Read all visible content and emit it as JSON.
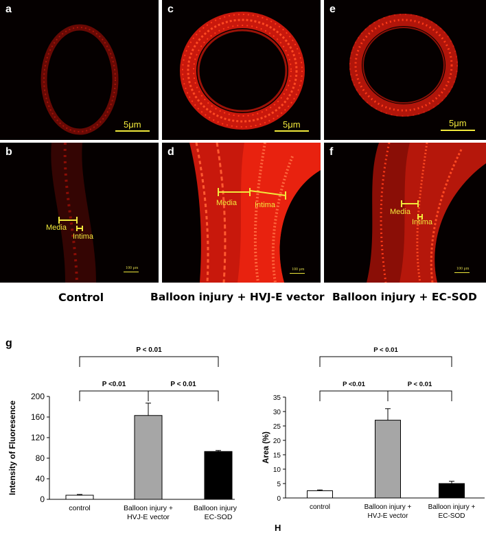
{
  "panels": {
    "a": {
      "label": "a",
      "scale": "5μm"
    },
    "b": {
      "label": "b",
      "scale": "100 μm",
      "media": "Media",
      "intima": "Intima"
    },
    "c": {
      "label": "c",
      "scale": "5μm"
    },
    "d": {
      "label": "d",
      "scale": "100 μm",
      "media": "Media",
      "intima": "Intima"
    },
    "e": {
      "label": "e",
      "scale": "5μm"
    },
    "f": {
      "label": "f",
      "scale": "100 μm",
      "media": "Media",
      "intima": "Intima"
    }
  },
  "captions": {
    "control": "Control",
    "vector": "Balloon injury + HVJ-E vector",
    "ecsod": "Balloon injury + EC-SOD"
  },
  "figure_labels": {
    "g": "g",
    "h": "H"
  },
  "colors": {
    "fluor": "#ff2a10",
    "scale": "#f2ea3c",
    "bar_control": "#ffffff",
    "bar_vector": "#a6a6a6",
    "bar_ecsod": "#000000"
  },
  "chart_data": [
    {
      "type": "bar",
      "categories": [
        "control",
        "Balloon injury + HVJ-E vector",
        "Balloon injury + EC-SOD"
      ],
      "category_lines": [
        [
          "control"
        ],
        [
          "Balloon injury +",
          "HVJ-E vector"
        ],
        [
          "Balloon injury +",
          "EC-SOD"
        ]
      ],
      "values": [
        8,
        163,
        93
      ],
      "errors": [
        1.5,
        24,
        2
      ],
      "ylabel": "Intensity of Fluoresence",
      "ylim": [
        0,
        200
      ],
      "yticks": [
        0,
        40,
        80,
        120,
        160,
        200
      ],
      "significance": [
        {
          "from": 0,
          "to": 1,
          "label": "P <0.01",
          "level": 1
        },
        {
          "from": 1,
          "to": 2,
          "label": "P < 0.01",
          "level": 1
        },
        {
          "from": 0,
          "to": 2,
          "label": "P < 0.01",
          "level": 2
        }
      ]
    },
    {
      "type": "bar",
      "categories": [
        "control",
        "Balloon injury + HVJ-E vector",
        "Balloon injury + EC-SOD"
      ],
      "category_lines": [
        [
          "control"
        ],
        [
          "Balloon injury +",
          "HVJ-E vector"
        ],
        [
          "Balloon injury +",
          "EC-SOD"
        ]
      ],
      "values": [
        2.5,
        27,
        5
      ],
      "errors": [
        0.3,
        4,
        0.8
      ],
      "ylabel": "Area (%)",
      "ylim": [
        0,
        35
      ],
      "yticks": [
        0,
        5,
        10,
        15,
        20,
        25,
        30,
        35
      ],
      "significance": [
        {
          "from": 0,
          "to": 1,
          "label": "P <0.01",
          "level": 1
        },
        {
          "from": 1,
          "to": 2,
          "label": "P < 0.01",
          "level": 1
        },
        {
          "from": 0,
          "to": 2,
          "label": "P < 0.01",
          "level": 2
        }
      ]
    }
  ]
}
